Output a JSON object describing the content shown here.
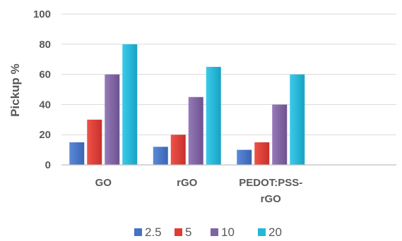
{
  "chart_data": {
    "type": "bar",
    "title": "",
    "xlabel": "",
    "ylabel": "Pickup %",
    "ylim": [
      0,
      100
    ],
    "yticks": [
      0,
      20,
      40,
      60,
      80,
      100
    ],
    "grid": true,
    "legend_position": "bottom",
    "categories": [
      {
        "lines": [
          "GO"
        ]
      },
      {
        "lines": [
          "rGO"
        ]
      },
      {
        "lines": [
          "PEDOT:PSS-",
          "rGO"
        ]
      },
      {
        "lines": [
          ""
        ]
      }
    ],
    "series": [
      {
        "name": "2.5",
        "color": "#4472C4",
        "values": [
          15,
          12,
          10,
          null
        ]
      },
      {
        "name": "5",
        "color": "#E03C31",
        "values": [
          30,
          20,
          15,
          null
        ]
      },
      {
        "name": "10",
        "color": "#8064A2",
        "values": [
          60,
          45,
          40,
          null
        ]
      },
      {
        "name": "20",
        "color": "#22B7D8",
        "values": [
          80,
          65,
          60,
          null
        ]
      }
    ]
  }
}
